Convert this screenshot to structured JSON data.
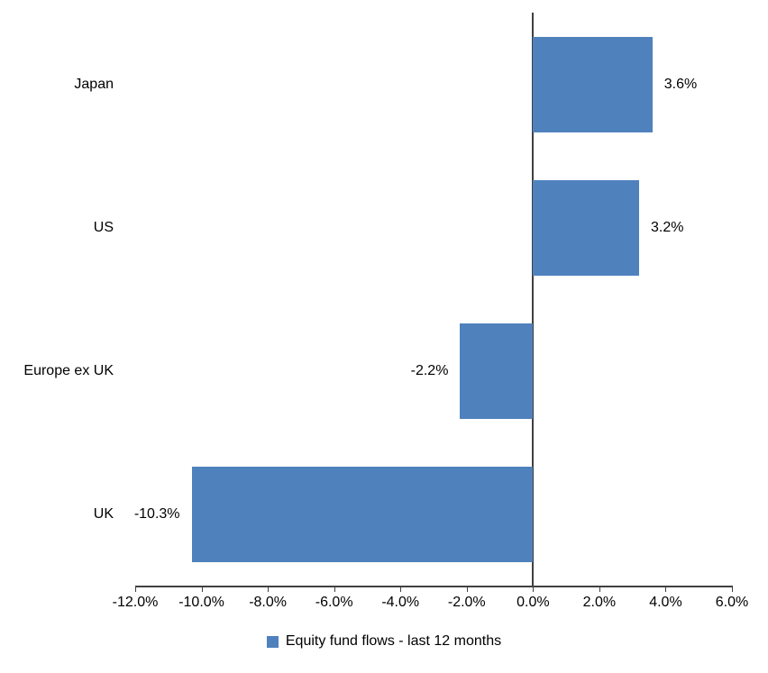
{
  "chart_data": {
    "type": "bar",
    "orientation": "horizontal",
    "title": "",
    "categories": [
      "Japan",
      "US",
      "Europe ex UK",
      "UK"
    ],
    "values": [
      3.6,
      3.2,
      -2.2,
      -10.3
    ],
    "data_labels": [
      "3.6%",
      "3.2%",
      "-2.2%",
      "-10.3%"
    ],
    "xlim": [
      -12,
      6
    ],
    "x_ticks": [
      -12,
      -10,
      -8,
      -6,
      -4,
      -2,
      0,
      2,
      4,
      6
    ],
    "x_tick_labels": [
      "-12.0%",
      "-10.0%",
      "-8.0%",
      "-6.0%",
      "-4.0%",
      "-2.0%",
      "0.0%",
      "2.0%",
      "4.0%",
      "6.0%"
    ],
    "grid": false,
    "legend_position": "bottom",
    "legend": [
      {
        "label": "Equity fund flows - last 12 months",
        "color": "#4F81BD"
      }
    ],
    "colors": {
      "bar": "#4F81BD",
      "axis": "#404040",
      "text": "#000000"
    }
  }
}
